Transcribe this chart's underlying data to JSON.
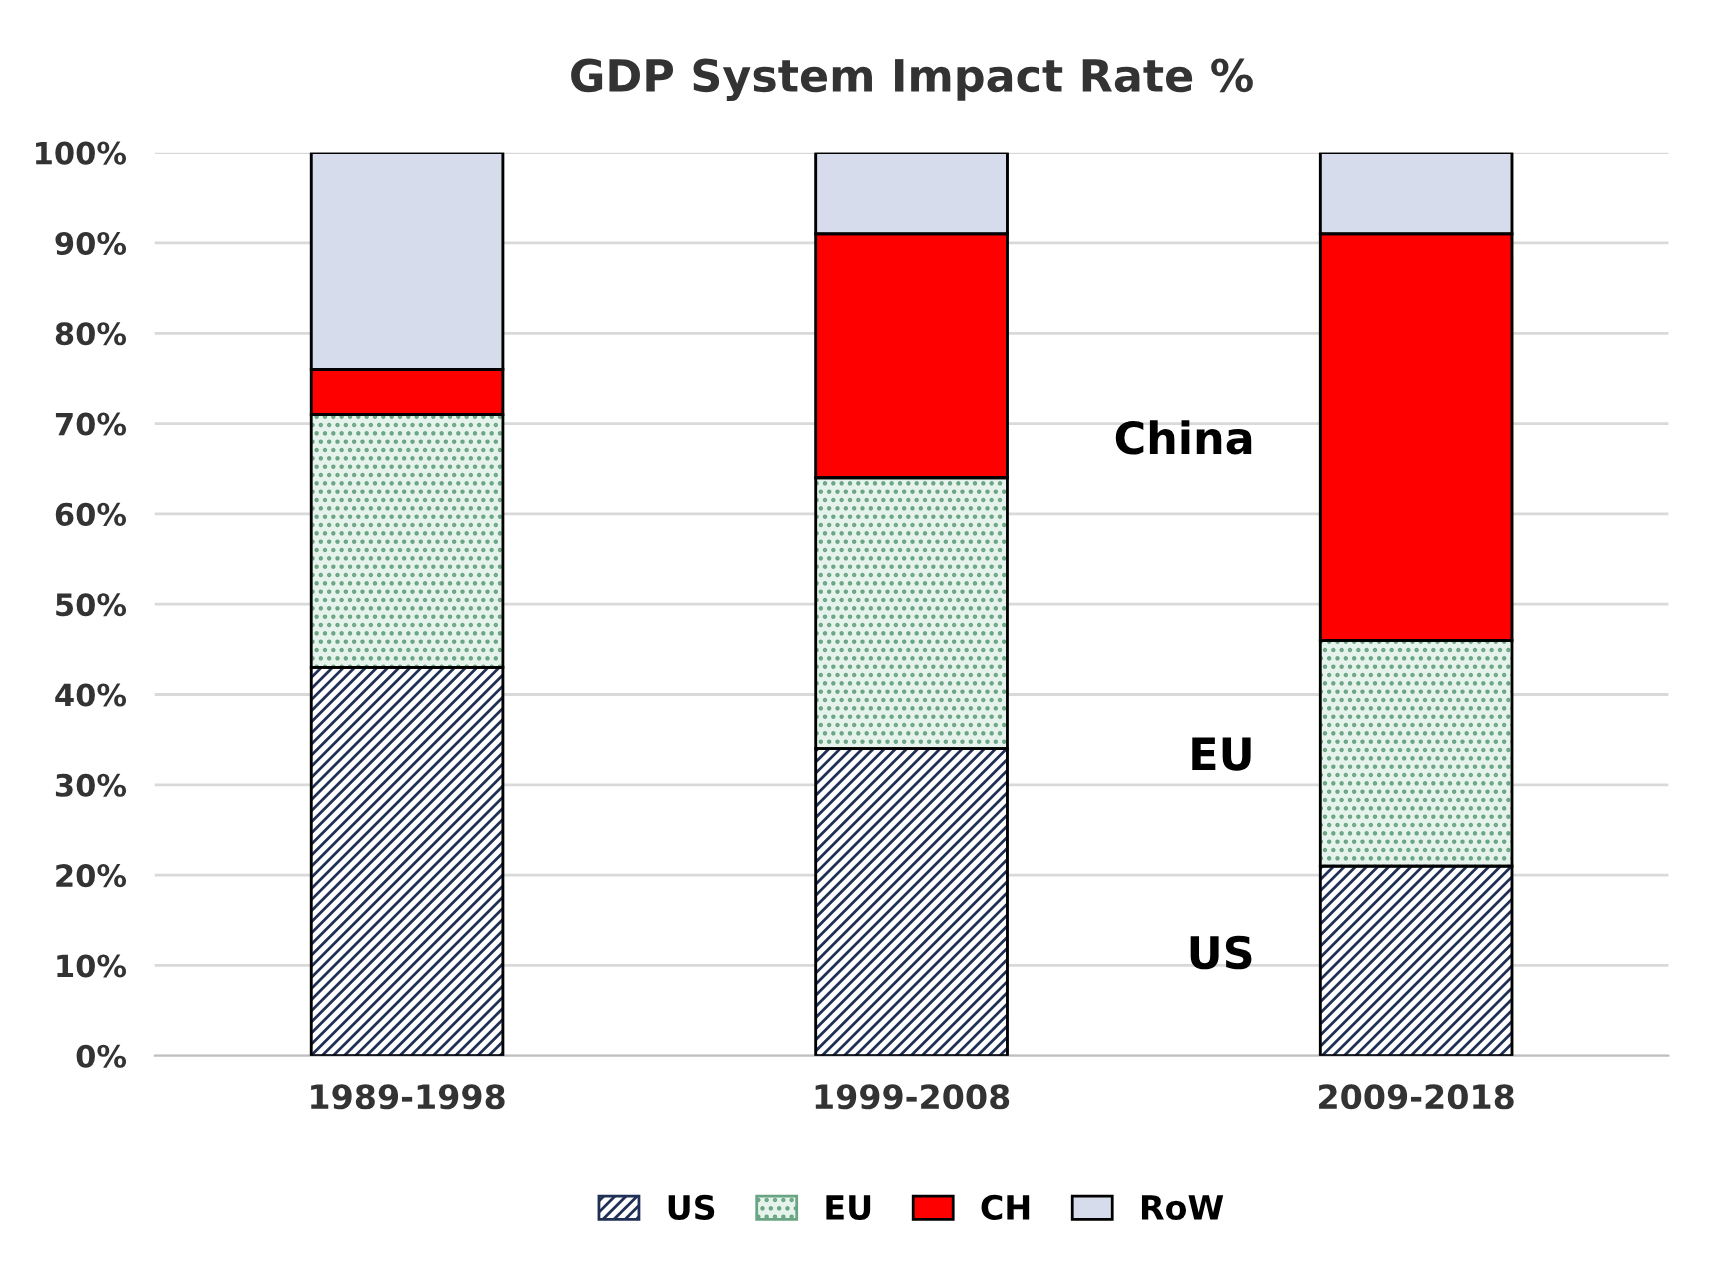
{
  "chart_data": {
    "type": "bar",
    "title": "GDP System Impact Rate %",
    "stacked": true,
    "categories": [
      "1989-1998",
      "1999-2008",
      "2009-2018"
    ],
    "series": [
      {
        "name": "US",
        "color": "#1f2f55",
        "values": [
          43,
          34,
          21
        ]
      },
      {
        "name": "EU",
        "color": "#6aa583",
        "values": [
          28,
          30,
          25
        ]
      },
      {
        "name": "CH",
        "color": "#ff0000",
        "values": [
          5,
          27,
          45
        ]
      },
      {
        "name": "RoW",
        "color": "#d6dcec",
        "values": [
          24,
          9,
          9
        ]
      }
    ],
    "ylim": [
      0,
      100
    ],
    "yticks": [
      {
        "value": 0,
        "label": "0%"
      },
      {
        "value": 10,
        "label": "10%"
      },
      {
        "value": 20,
        "label": "20%"
      },
      {
        "value": 30,
        "label": "30%"
      },
      {
        "value": 40,
        "label": "40%"
      },
      {
        "value": 50,
        "label": "50%"
      },
      {
        "value": 60,
        "label": "60%"
      },
      {
        "value": 70,
        "label": "70%"
      },
      {
        "value": 80,
        "label": "80%"
      },
      {
        "value": 90,
        "label": "90%"
      },
      {
        "value": 100,
        "label": "100%"
      }
    ],
    "grid": "y",
    "legend": "bottom",
    "annotations": [
      "China",
      "EU",
      "US"
    ]
  }
}
